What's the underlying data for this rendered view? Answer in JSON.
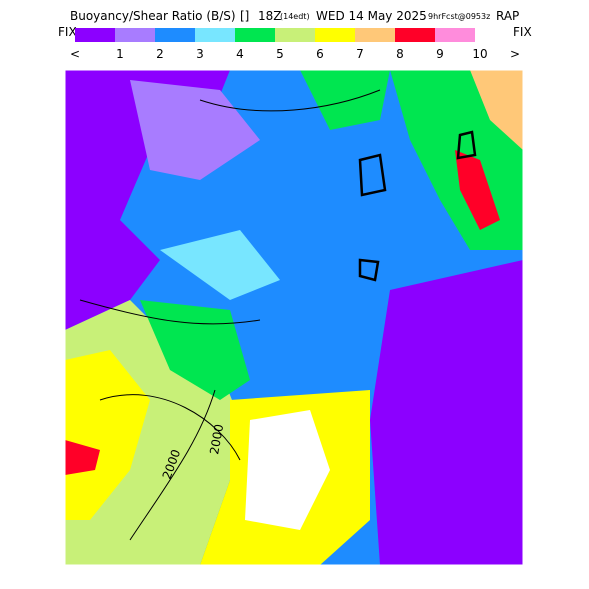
{
  "header": {
    "title": "Buoyancy/Shear Ratio (B/S)",
    "symbol": "[]",
    "time": "18Z",
    "local": "(14edt)",
    "date": "WED 14 May 2025",
    "forecast": "9hrFcst@0953z",
    "model": "RAP"
  },
  "legend": {
    "left": "FIX",
    "right": "FIX",
    "under": "<",
    "over": ">",
    "labels": [
      "1",
      "2",
      "3",
      "4",
      "5",
      "6",
      "7",
      "8",
      "9",
      "10"
    ],
    "colors": [
      "#8c00ff",
      "#a87cff",
      "#1e8cff",
      "#78e6ff",
      "#00e650",
      "#c8f078",
      "#ffff00",
      "#ffc878",
      "#ff0028",
      "#ff8cdc"
    ]
  },
  "map": {
    "contour_labels": [
      "2000",
      "2000"
    ]
  }
}
